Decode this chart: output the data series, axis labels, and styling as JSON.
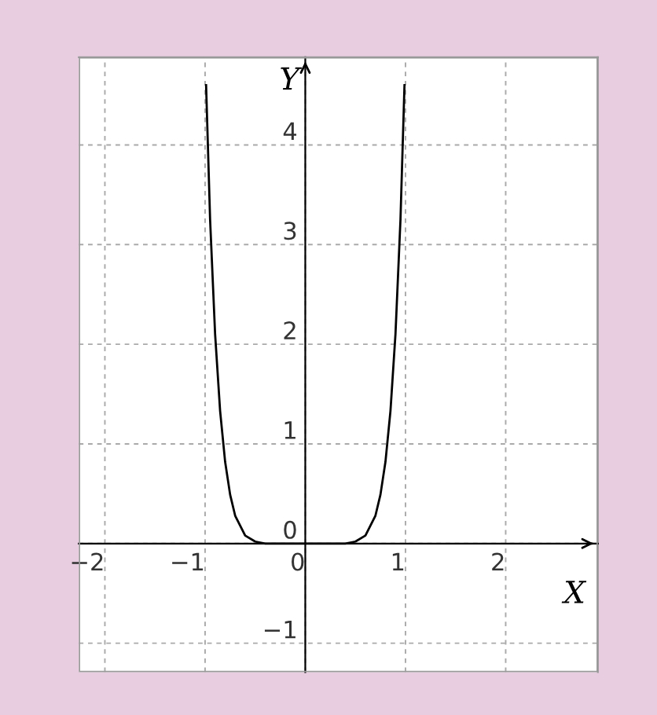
{
  "chart_data": {
    "type": "line",
    "xlabel": "X",
    "ylabel": "Y",
    "x": [
      -0.99,
      -0.95,
      -0.9,
      -0.85,
      -0.8,
      -0.75,
      -0.7,
      -0.6,
      -0.5,
      -0.4,
      -0.2,
      0.0,
      0.2,
      0.4,
      0.5,
      0.6,
      0.7,
      0.75,
      0.8,
      0.85,
      0.9,
      0.95,
      0.99
    ],
    "series": [
      {
        "color": "#000000",
        "values": [
          4.6,
          3.25,
          2.1,
          1.33,
          0.82,
          0.49,
          0.28,
          0.08,
          0.02,
          0.0,
          0.0,
          0.0,
          0.0,
          0.0,
          0.02,
          0.08,
          0.28,
          0.49,
          0.82,
          1.33,
          2.1,
          3.25,
          4.6
        ]
      }
    ],
    "xlim": [
      -2.26,
      2.92
    ],
    "ylim": [
      -1.29,
      4.88
    ],
    "xticks": [
      -2,
      -1,
      0,
      1,
      2
    ],
    "yticks": [
      -1,
      0,
      1,
      2,
      3,
      4
    ],
    "grid": true,
    "marker": "none",
    "line_style": "solid"
  }
}
